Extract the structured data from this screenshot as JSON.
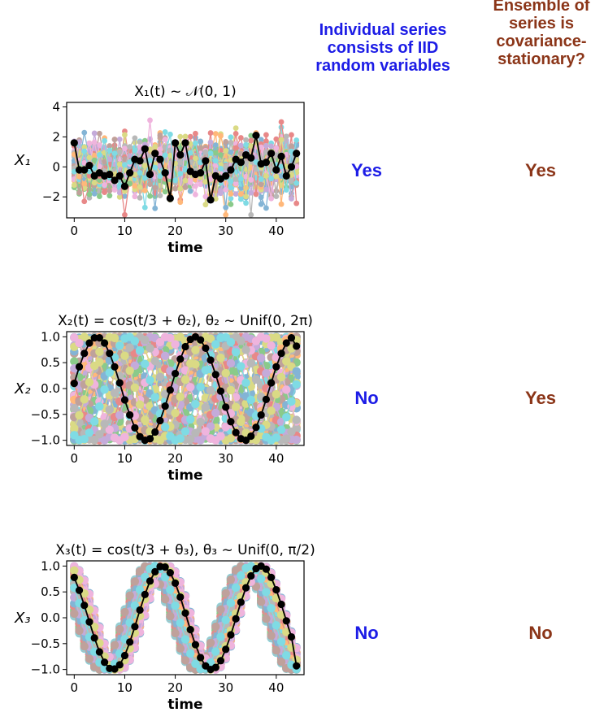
{
  "headers": {
    "iid": "Individual series\nconsists of IID\nrandom variables",
    "covariance": "Ensemble of\nseries is\ncovariance-\nstationary?"
  },
  "answers": [
    {
      "iid": "Yes",
      "covariance": "Yes"
    },
    {
      "iid": "No",
      "covariance": "Yes"
    },
    {
      "iid": "No",
      "covariance": "No"
    }
  ],
  "palette": [
    "#1f77b4",
    "#ff7f0e",
    "#2ca02c",
    "#d62728",
    "#9467bd",
    "#8c564b",
    "#e377c2",
    "#7f7f7f",
    "#bcbd22",
    "#17becf"
  ],
  "highlight_color": "#000000",
  "chart_data": [
    {
      "type": "line",
      "title": "X₁(t) ~ 𝒩(0, 1)",
      "ylabel": "X₁",
      "xlabel": "time",
      "x": [
        0,
        1,
        2,
        3,
        4,
        5,
        6,
        7,
        8,
        9,
        10,
        11,
        12,
        13,
        14,
        15,
        16,
        17,
        18,
        19,
        20,
        21,
        22,
        23,
        24,
        25,
        26,
        27,
        28,
        29,
        30,
        31,
        32,
        33,
        34,
        35,
        36,
        37,
        38,
        39,
        40,
        41,
        42,
        43,
        44
      ],
      "xlim": [
        -1.5,
        45.5
      ],
      "ylim": [
        -3.4,
        4.3
      ],
      "xticks": [
        0,
        10,
        20,
        30,
        40
      ],
      "yticks": [
        -2,
        0,
        2,
        4
      ],
      "ytick_labels": [
        "−2",
        "0",
        "2",
        "4"
      ],
      "background": "many IID N(0,1) series drawn in matplotlib default colors",
      "series": [
        {
          "values": [
            1.6,
            -0.2,
            -0.2,
            0.1,
            -0.6,
            -0.4,
            -0.6,
            -0.5,
            -0.9,
            -0.6,
            -1.3,
            -0.4,
            0.5,
            0.4,
            1.2,
            -0.5,
            0.9,
            0.5,
            -0.4,
            -2.1,
            1.6,
            0.8,
            1.6,
            -0.3,
            -0.5,
            -0.4,
            0.4,
            -2.2,
            -0.6,
            -0.8,
            -0.6,
            -0.2,
            0.5,
            0.3,
            0.8,
            0.6,
            2.1,
            0.2,
            0.3,
            0.9,
            -0.2,
            0.7,
            -0.6,
            0.0,
            0.9
          ]
        }
      ]
    },
    {
      "type": "line",
      "title": "X₂(t) = cos(t/3 + θ₂), θ₂ ~ Unif(0, 2π)",
      "ylabel": "X₂",
      "xlabel": "time",
      "x": [
        0,
        1,
        2,
        3,
        4,
        5,
        6,
        7,
        8,
        9,
        10,
        11,
        12,
        13,
        14,
        15,
        16,
        17,
        18,
        19,
        20,
        21,
        22,
        23,
        24,
        25,
        26,
        27,
        28,
        29,
        30,
        31,
        32,
        33,
        34,
        35,
        36,
        37,
        38,
        39,
        40,
        41,
        42,
        43,
        44
      ],
      "xlim": [
        -1.5,
        45.5
      ],
      "ylim": [
        -1.1,
        1.1
      ],
      "xticks": [
        0,
        10,
        20,
        30,
        40
      ],
      "yticks": [
        -1.0,
        -0.5,
        0.0,
        0.5,
        1.0
      ],
      "ytick_labels": [
        "−1.0",
        "−0.5",
        "0.0",
        "0.5",
        "1.0"
      ],
      "background": "many cosine series with random phase in [0, 2π]",
      "series": [
        {
          "values": [
            0.1,
            0.42,
            0.68,
            0.88,
            0.98,
            0.98,
            0.88,
            0.68,
            0.42,
            0.11,
            -0.22,
            -0.51,
            -0.76,
            -0.93,
            -1.0,
            -0.97,
            -0.84,
            -0.62,
            -0.34,
            -0.03,
            0.29,
            0.57,
            0.81,
            0.95,
            1.0,
            0.94,
            0.78,
            0.55,
            0.27,
            -0.05,
            -0.36,
            -0.64,
            -0.85,
            -0.97,
            -1.0,
            -0.92,
            -0.75,
            -0.51,
            -0.21,
            0.11,
            0.42,
            0.68,
            0.88,
            0.98,
            0.82
          ]
        }
      ]
    },
    {
      "type": "line",
      "title": "X₃(t) = cos(t/3 + θ₃), θ₃ ~ Unif(0, π/2)",
      "ylabel": "X₃",
      "xlabel": "time",
      "x": [
        0,
        1,
        2,
        3,
        4,
        5,
        6,
        7,
        8,
        9,
        10,
        11,
        12,
        13,
        14,
        15,
        16,
        17,
        18,
        19,
        20,
        21,
        22,
        23,
        24,
        25,
        26,
        27,
        28,
        29,
        30,
        31,
        32,
        33,
        34,
        35,
        36,
        37,
        38,
        39,
        40,
        41,
        42,
        43,
        44
      ],
      "xlim": [
        -1.5,
        45.5
      ],
      "ylim": [
        -1.1,
        1.1
      ],
      "xticks": [
        0,
        10,
        20,
        30,
        40
      ],
      "yticks": [
        -1.0,
        -0.5,
        0.0,
        0.5,
        1.0
      ],
      "ytick_labels": [
        "−1.0",
        "−0.5",
        "0.0",
        "0.5",
        "1.0"
      ],
      "background": "many cosine series with random phase in [0, π/2]",
      "series": [
        {
          "values": [
            0.78,
            0.53,
            0.24,
            -0.08,
            -0.39,
            -0.66,
            -0.86,
            -0.98,
            -0.99,
            -0.91,
            -0.73,
            -0.47,
            -0.17,
            0.15,
            0.45,
            0.71,
            0.89,
            0.99,
            0.98,
            0.87,
            0.67,
            0.4,
            0.09,
            -0.23,
            -0.52,
            -0.77,
            -0.93,
            -1.0,
            -0.96,
            -0.83,
            -0.61,
            -0.33,
            -0.02,
            0.3,
            0.58,
            0.81,
            0.95,
            1.0,
            0.94,
            0.78,
            0.54,
            0.26,
            -0.06,
            -0.37,
            -0.93
          ]
        }
      ]
    }
  ]
}
